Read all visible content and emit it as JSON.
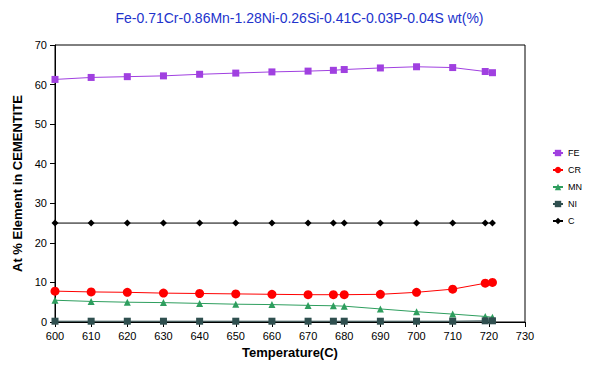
{
  "chart_data": {
    "type": "line",
    "title": "Fe-0.71Cr-0.86Mn-1.28Ni-0.26Si-0.41C-0.03P-0.04S wt(%)",
    "x_label": "Temperature(C)",
    "y_label": "At % Element in CEMENTITE",
    "x": [
      600,
      610,
      620,
      630,
      640,
      650,
      660,
      670,
      677,
      680,
      690,
      700,
      710,
      719,
      721
    ],
    "series": [
      {
        "name": "FE",
        "color": "#a040e0",
        "marker": "square",
        "values": [
          61.3,
          61.8,
          62.0,
          62.2,
          62.6,
          62.9,
          63.2,
          63.4,
          63.6,
          63.8,
          64.2,
          64.5,
          64.3,
          63.3,
          63.0
        ]
      },
      {
        "name": "CR",
        "color": "#ff0000",
        "marker": "circle",
        "values": [
          7.8,
          7.6,
          7.5,
          7.3,
          7.2,
          7.1,
          7.0,
          6.9,
          6.9,
          6.9,
          7.0,
          7.5,
          8.3,
          9.8,
          10.0
        ]
      },
      {
        "name": "MN",
        "color": "#2e9e5e",
        "marker": "triangle",
        "values": [
          5.5,
          5.2,
          5.0,
          4.9,
          4.7,
          4.5,
          4.4,
          4.2,
          4.1,
          4.0,
          3.3,
          2.6,
          2.0,
          1.4,
          1.2
        ]
      },
      {
        "name": "NI",
        "color": "#2f4f4f",
        "marker": "square",
        "values": [
          0.2,
          0.2,
          0.2,
          0.2,
          0.2,
          0.2,
          0.2,
          0.2,
          0.2,
          0.2,
          0.2,
          0.2,
          0.2,
          0.3,
          0.3
        ]
      },
      {
        "name": "C",
        "color": "#000000",
        "marker": "diamond",
        "values": [
          25,
          25,
          25,
          25,
          25,
          25,
          25,
          25,
          25,
          25,
          25,
          25,
          25,
          25,
          25
        ]
      }
    ],
    "xlim": [
      600,
      730
    ],
    "xticks": [
      600,
      610,
      620,
      630,
      640,
      650,
      660,
      670,
      680,
      690,
      700,
      710,
      720,
      730
    ],
    "ylim": [
      0,
      70
    ],
    "yticks": [
      0,
      10,
      20,
      30,
      40,
      50,
      60,
      70
    ],
    "grid": false,
    "legend": "right"
  }
}
